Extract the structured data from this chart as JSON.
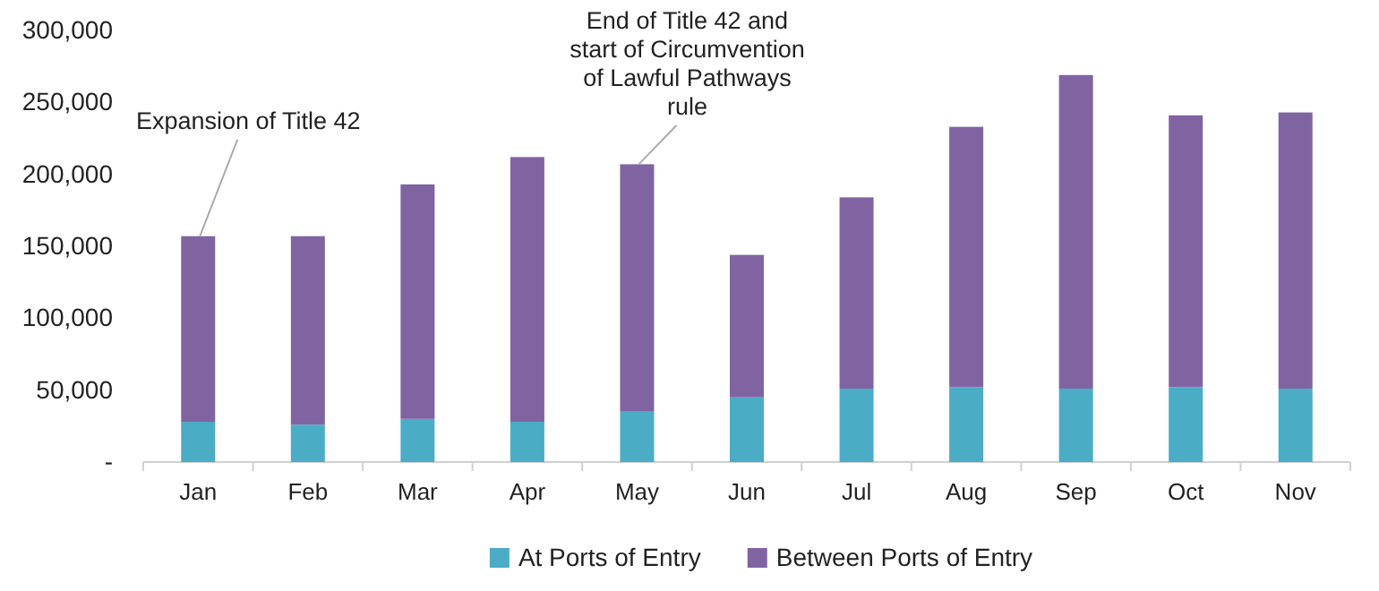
{
  "chart_data": {
    "type": "bar",
    "stacked": true,
    "categories": [
      "Jan",
      "Feb",
      "Mar",
      "Apr",
      "May",
      "Jun",
      "Jul",
      "Aug",
      "Sep",
      "Oct",
      "Nov"
    ],
    "series": [
      {
        "name": "At Ports of Entry",
        "color": "#4bacc6",
        "values": [
          28000,
          26000,
          30000,
          28000,
          35000,
          45000,
          51000,
          52000,
          51000,
          52000,
          51000
        ]
      },
      {
        "name": "Between Ports of Entry",
        "color": "#8064a2",
        "values": [
          129000,
          131000,
          163000,
          184000,
          172000,
          99000,
          133000,
          181000,
          218000,
          189000,
          192000
        ]
      }
    ],
    "ylim": [
      0,
      300000
    ],
    "yticks": [
      {
        "value": 0,
        "label": "-"
      },
      {
        "value": 50000,
        "label": "50,000"
      },
      {
        "value": 100000,
        "label": "100,000"
      },
      {
        "value": 150000,
        "label": "150,000"
      },
      {
        "value": 200000,
        "label": "200,000"
      },
      {
        "value": 250000,
        "label": "250,000"
      },
      {
        "value": 300000,
        "label": "300,000"
      }
    ],
    "legend": "bottom",
    "annotations": [
      {
        "text": "Expansion of Title 42",
        "x": "Jan",
        "y": 157000
      },
      {
        "text": "End of Title 42 and\nstart of Circumvention\nof Lawful Pathways\nrule",
        "x": "May",
        "y": 207000
      }
    ]
  }
}
